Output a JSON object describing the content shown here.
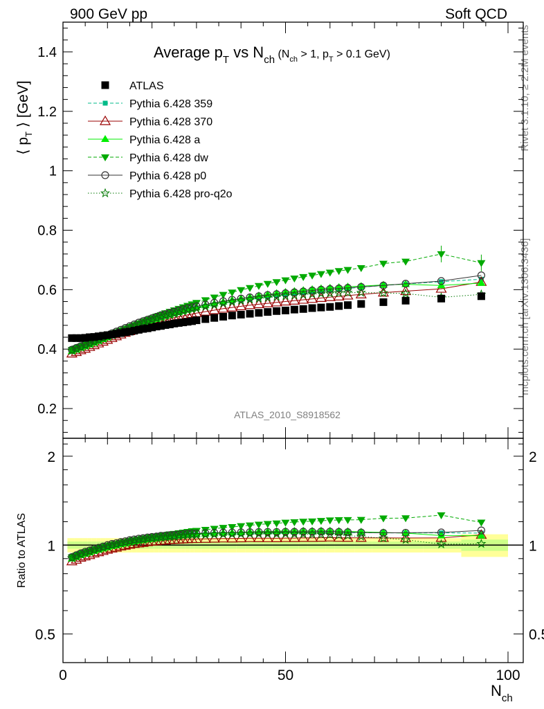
{
  "header": {
    "left": "900 GeV pp",
    "right": "Soft QCD"
  },
  "side_labels": {
    "top": "Rivet 3.1.10, ≥ 2.2M events",
    "bottom": "mcplots.cern.ch [arXiv:1306.3436]"
  },
  "chart_data": [
    {
      "type": "scatter",
      "title": {
        "main": "Average p",
        "main_sub": "T",
        "vs": " vs N",
        "vs_sub": "ch",
        "cond_open": " (N",
        "cond_sub1": "ch",
        "cond_mid": " > 1, p",
        "cond_sub2": "T",
        "cond_end": " > 0.1 GeV)"
      },
      "ylabel": {
        "open": "⟨ p",
        "sub": "T",
        "close": " ⟩  [GeV]"
      },
      "xlabel": {
        "main": "N",
        "sub": "ch"
      },
      "xlim": [
        0,
        100
      ],
      "ylim": [
        0.1,
        1.5
      ],
      "yticks": [
        0.2,
        0.4,
        0.6,
        0.8,
        1,
        1.2,
        1.4
      ],
      "ytick_labels": [
        "0.2",
        "0.4",
        "0.6",
        "0.8",
        "1",
        "1.2",
        "1.4"
      ],
      "xticks": [
        0,
        50,
        100
      ],
      "xtick_labels": [
        "0",
        "50",
        "100"
      ],
      "watermark": "ATLAS_2010_S8918562",
      "legend_position": "top-left",
      "series": [
        {
          "name": "ATLAS",
          "color": "#000000",
          "marker": "square-filled",
          "line": "none",
          "x": [
            2,
            3,
            4,
            5,
            6,
            7,
            8,
            9,
            10,
            11,
            12,
            13,
            14,
            15,
            16,
            17,
            18,
            19,
            20,
            21,
            22,
            23,
            24,
            25,
            26,
            27,
            28,
            29,
            30,
            32,
            34,
            36,
            38,
            40,
            42,
            44,
            46,
            48,
            50,
            52,
            54,
            56,
            58,
            60,
            62,
            64,
            67,
            72,
            77,
            85,
            94
          ],
          "y": [
            0.437,
            0.437,
            0.437,
            0.438,
            0.44,
            0.441,
            0.443,
            0.445,
            0.447,
            0.449,
            0.452,
            0.454,
            0.457,
            0.459,
            0.462,
            0.465,
            0.468,
            0.47,
            0.473,
            0.476,
            0.478,
            0.481,
            0.483,
            0.486,
            0.488,
            0.49,
            0.492,
            0.494,
            0.497,
            0.501,
            0.505,
            0.509,
            0.513,
            0.516,
            0.519,
            0.522,
            0.525,
            0.528,
            0.53,
            0.533,
            0.535,
            0.538,
            0.54,
            0.542,
            0.545,
            0.548,
            0.552,
            0.558,
            0.563,
            0.57,
            0.578
          ]
        },
        {
          "name": "Pythia 6.428 359",
          "color": "#00bb88",
          "marker": "square-small",
          "line": "dashed",
          "x": [
            2,
            3,
            4,
            5,
            6,
            7,
            8,
            9,
            10,
            11,
            12,
            13,
            14,
            15,
            16,
            17,
            18,
            19,
            20,
            21,
            22,
            23,
            24,
            25,
            26,
            27,
            28,
            29,
            30,
            32,
            34,
            36,
            38,
            40,
            42,
            44,
            46,
            48,
            50,
            52,
            54,
            56,
            58,
            60,
            62,
            64,
            67,
            72,
            77,
            85,
            94
          ],
          "y": [
            0.401,
            0.406,
            0.411,
            0.416,
            0.421,
            0.427,
            0.432,
            0.438,
            0.444,
            0.45,
            0.456,
            0.462,
            0.468,
            0.474,
            0.48,
            0.485,
            0.49,
            0.495,
            0.5,
            0.505,
            0.509,
            0.513,
            0.517,
            0.521,
            0.525,
            0.528,
            0.532,
            0.535,
            0.538,
            0.544,
            0.549,
            0.554,
            0.559,
            0.563,
            0.567,
            0.571,
            0.575,
            0.579,
            0.582,
            0.586,
            0.589,
            0.592,
            0.595,
            0.598,
            0.601,
            0.604,
            0.608,
            0.614,
            0.619,
            0.627,
            0.635
          ]
        },
        {
          "name": "Pythia 6.428 370",
          "color": "#990000",
          "marker": "triangle-open",
          "line": "solid",
          "x": [
            2,
            3,
            4,
            5,
            6,
            7,
            8,
            9,
            10,
            11,
            12,
            13,
            14,
            15,
            16,
            17,
            18,
            19,
            20,
            21,
            22,
            23,
            24,
            25,
            26,
            27,
            28,
            29,
            30,
            32,
            34,
            36,
            38,
            40,
            42,
            44,
            46,
            48,
            50,
            52,
            54,
            56,
            58,
            60,
            62,
            64,
            67,
            72,
            77,
            85,
            94
          ],
          "y": [
            0.385,
            0.39,
            0.396,
            0.401,
            0.407,
            0.413,
            0.419,
            0.425,
            0.431,
            0.437,
            0.443,
            0.449,
            0.455,
            0.46,
            0.466,
            0.471,
            0.476,
            0.481,
            0.486,
            0.49,
            0.494,
            0.498,
            0.502,
            0.506,
            0.509,
            0.512,
            0.515,
            0.518,
            0.521,
            0.526,
            0.531,
            0.536,
            0.54,
            0.544,
            0.548,
            0.551,
            0.554,
            0.557,
            0.56,
            0.563,
            0.566,
            0.569,
            0.572,
            0.575,
            0.577,
            0.58,
            0.584,
            0.59,
            0.595,
            0.603,
            0.626
          ]
        },
        {
          "name": "Pythia 6.428 a",
          "color": "#00ee00",
          "marker": "triangle-filled",
          "line": "solid",
          "x": [
            2,
            3,
            4,
            5,
            6,
            7,
            8,
            9,
            10,
            11,
            12,
            13,
            14,
            15,
            16,
            17,
            18,
            19,
            20,
            21,
            22,
            23,
            24,
            25,
            26,
            27,
            28,
            29,
            30,
            32,
            34,
            36,
            38,
            40,
            42,
            44,
            46,
            48,
            50,
            52,
            54,
            56,
            58,
            60,
            62,
            64,
            67,
            72,
            77,
            85,
            94
          ],
          "y": [
            0.393,
            0.398,
            0.404,
            0.409,
            0.415,
            0.421,
            0.427,
            0.433,
            0.439,
            0.445,
            0.451,
            0.457,
            0.463,
            0.469,
            0.475,
            0.481,
            0.486,
            0.491,
            0.496,
            0.501,
            0.506,
            0.511,
            0.515,
            0.52,
            0.524,
            0.528,
            0.532,
            0.536,
            0.54,
            0.547,
            0.553,
            0.559,
            0.565,
            0.57,
            0.575,
            0.58,
            0.584,
            0.588,
            0.592,
            0.595,
            0.598,
            0.601,
            0.604,
            0.606,
            0.608,
            0.61,
            0.612,
            0.616,
            0.618,
            0.614,
            0.622
          ]
        },
        {
          "name": "Pythia 6.428 dw",
          "color": "#00aa00",
          "marker": "triangle-down-filled",
          "line": "dashed",
          "x": [
            2,
            3,
            4,
            5,
            6,
            7,
            8,
            9,
            10,
            11,
            12,
            13,
            14,
            15,
            16,
            17,
            18,
            19,
            20,
            21,
            22,
            23,
            24,
            25,
            26,
            27,
            28,
            29,
            30,
            32,
            34,
            36,
            38,
            40,
            42,
            44,
            46,
            48,
            50,
            52,
            54,
            56,
            58,
            60,
            62,
            64,
            67,
            72,
            77,
            85,
            94
          ],
          "y": [
            0.398,
            0.403,
            0.409,
            0.415,
            0.421,
            0.427,
            0.433,
            0.439,
            0.445,
            0.451,
            0.457,
            0.463,
            0.469,
            0.475,
            0.481,
            0.487,
            0.493,
            0.499,
            0.504,
            0.51,
            0.515,
            0.521,
            0.526,
            0.531,
            0.536,
            0.541,
            0.546,
            0.551,
            0.556,
            0.565,
            0.574,
            0.583,
            0.591,
            0.599,
            0.606,
            0.613,
            0.62,
            0.626,
            0.632,
            0.638,
            0.643,
            0.648,
            0.653,
            0.658,
            0.663,
            0.667,
            0.673,
            0.688,
            0.695,
            0.72,
            0.69
          ]
        },
        {
          "name": "Pythia 6.428 p0",
          "color": "#333333",
          "marker": "circle-open",
          "line": "solid",
          "x": [
            2,
            3,
            4,
            5,
            6,
            7,
            8,
            9,
            10,
            11,
            12,
            13,
            14,
            15,
            16,
            17,
            18,
            19,
            20,
            21,
            22,
            23,
            24,
            25,
            26,
            27,
            28,
            29,
            30,
            32,
            34,
            36,
            38,
            40,
            42,
            44,
            46,
            48,
            50,
            52,
            54,
            56,
            58,
            60,
            62,
            64,
            67,
            72,
            77,
            85,
            94
          ],
          "y": [
            0.398,
            0.404,
            0.41,
            0.416,
            0.422,
            0.428,
            0.434,
            0.44,
            0.447,
            0.453,
            0.459,
            0.465,
            0.471,
            0.477,
            0.483,
            0.489,
            0.494,
            0.499,
            0.504,
            0.509,
            0.514,
            0.518,
            0.522,
            0.526,
            0.53,
            0.534,
            0.538,
            0.541,
            0.544,
            0.55,
            0.556,
            0.561,
            0.566,
            0.57,
            0.574,
            0.578,
            0.582,
            0.585,
            0.588,
            0.591,
            0.594,
            0.597,
            0.6,
            0.602,
            0.604,
            0.606,
            0.609,
            0.614,
            0.62,
            0.629,
            0.648
          ]
        },
        {
          "name": "Pythia 6.428 pro-q2o",
          "color": "#007700",
          "marker": "star-open",
          "line": "dotted",
          "x": [
            2,
            3,
            4,
            5,
            6,
            7,
            8,
            9,
            10,
            11,
            12,
            13,
            14,
            15,
            16,
            17,
            18,
            19,
            20,
            21,
            22,
            23,
            24,
            25,
            26,
            27,
            28,
            29,
            30,
            32,
            34,
            36,
            38,
            40,
            42,
            44,
            46,
            48,
            50,
            52,
            54,
            56,
            58,
            60,
            62,
            64,
            67,
            72,
            77,
            85,
            94
          ],
          "y": [
            0.395,
            0.4,
            0.406,
            0.412,
            0.418,
            0.424,
            0.43,
            0.436,
            0.442,
            0.448,
            0.454,
            0.46,
            0.466,
            0.472,
            0.478,
            0.483,
            0.488,
            0.493,
            0.498,
            0.503,
            0.507,
            0.511,
            0.515,
            0.519,
            0.523,
            0.527,
            0.531,
            0.534,
            0.537,
            0.543,
            0.549,
            0.554,
            0.559,
            0.563,
            0.567,
            0.57,
            0.573,
            0.576,
            0.579,
            0.581,
            0.583,
            0.585,
            0.587,
            0.588,
            0.589,
            0.59,
            0.59,
            0.589,
            0.587,
            0.574,
            0.584
          ]
        }
      ]
    },
    {
      "type": "scatter",
      "ylabel": "Ratio to ATLAS",
      "ylim": [
        0.4,
        2.3
      ],
      "yscale": "log",
      "yticks": [
        0.5,
        1,
        2
      ],
      "ytick_labels": [
        "0.5",
        "1",
        "2"
      ],
      "reference_line": 1,
      "band": "data-uncertainty",
      "series_from": "ratio of each Pythia series to ATLAS"
    }
  ]
}
